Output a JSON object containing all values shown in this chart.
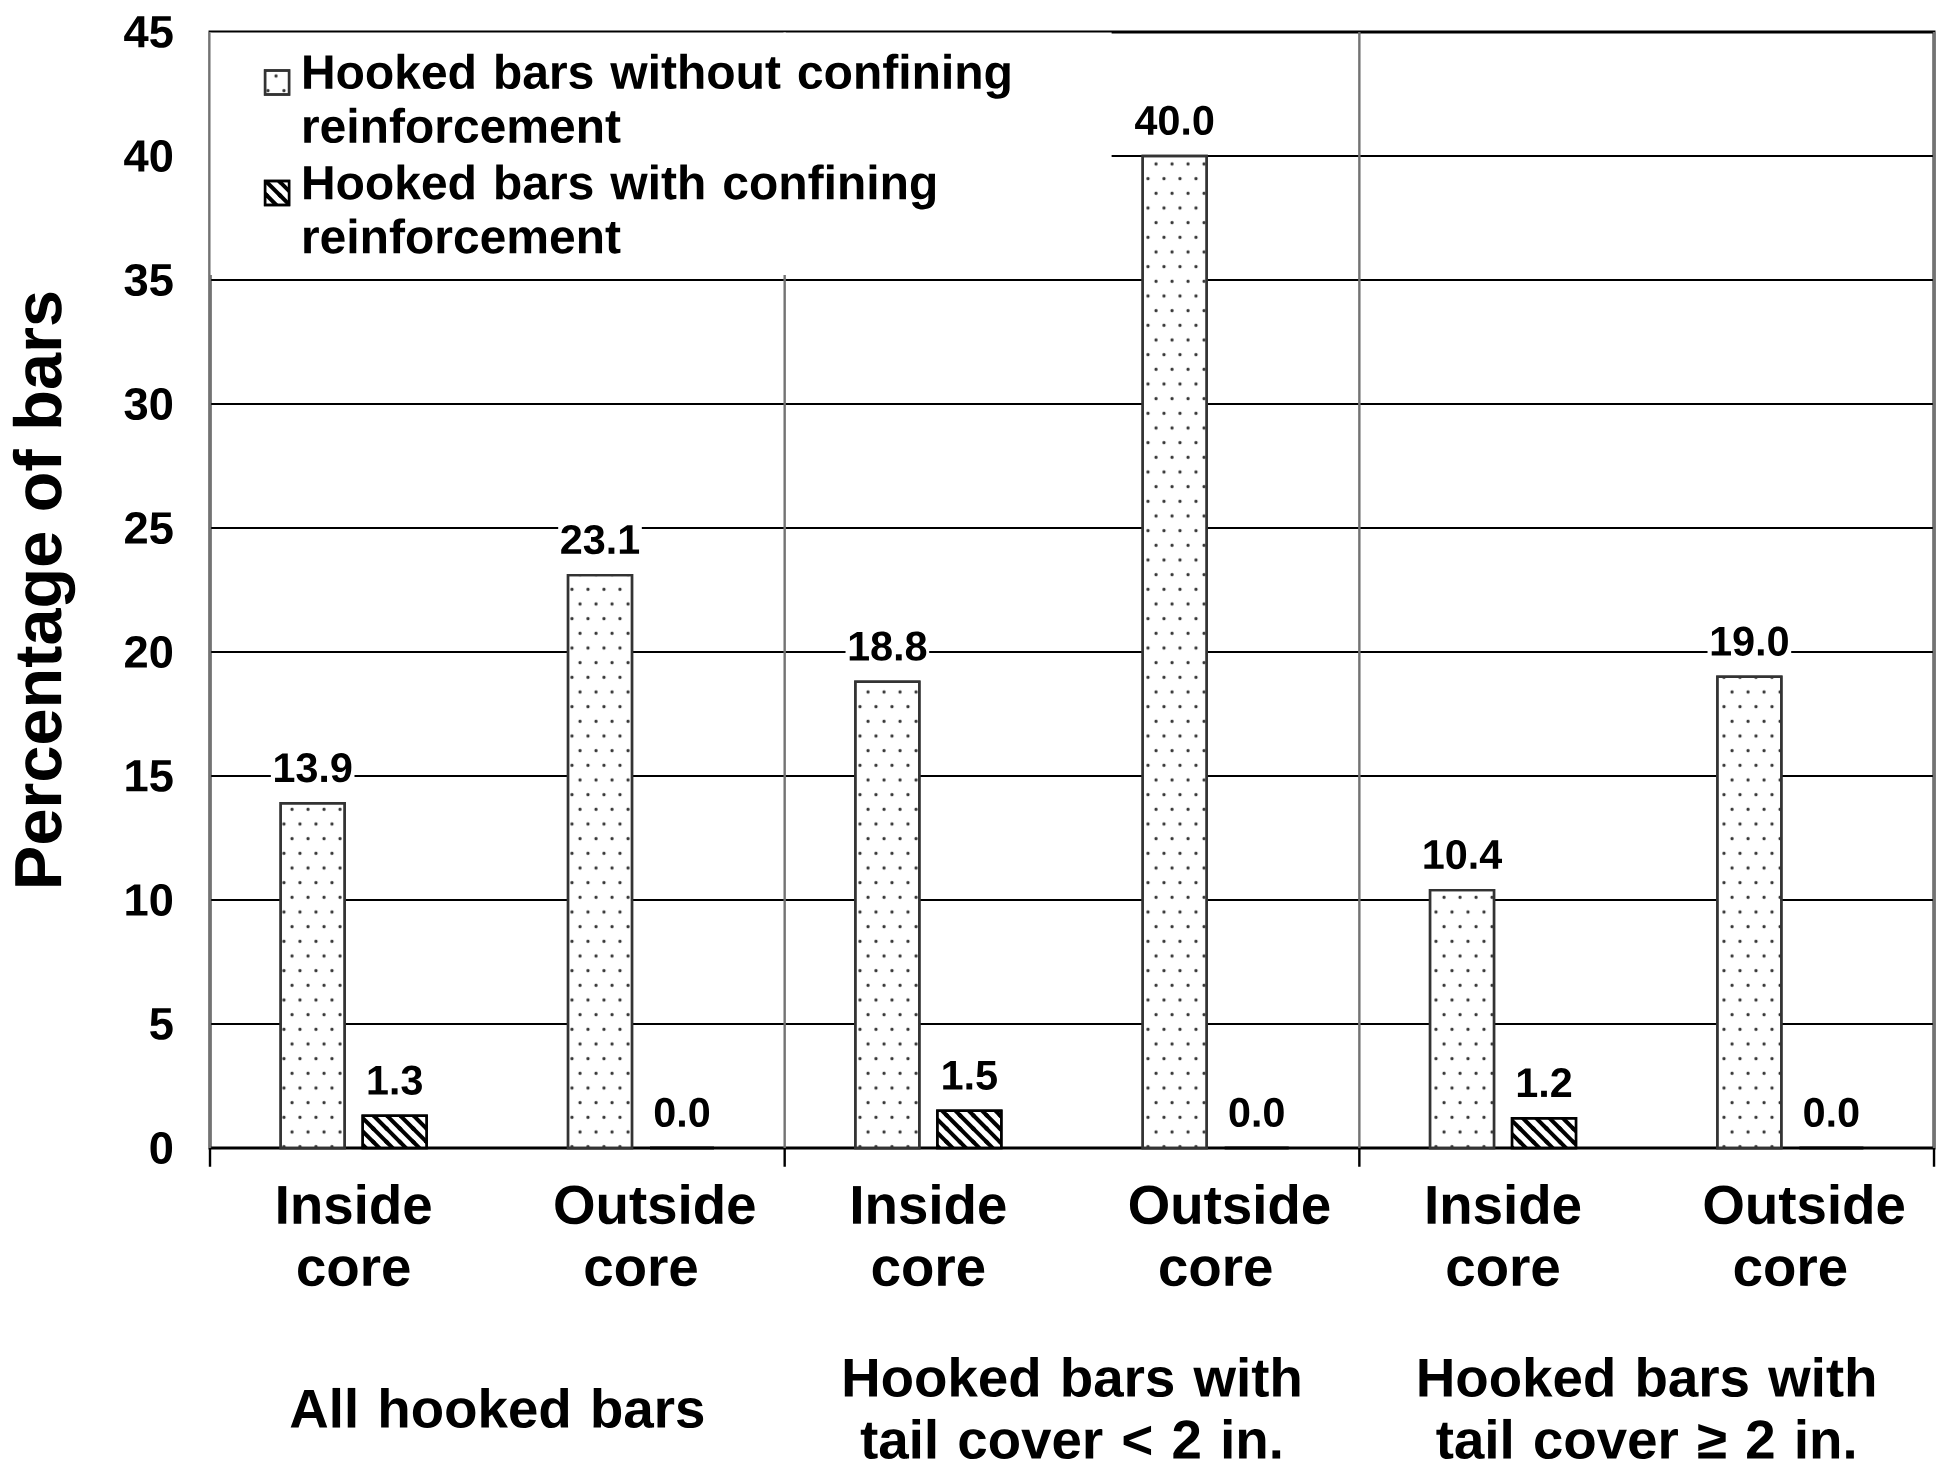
{
  "chart_data": {
    "type": "bar",
    "ylabel": "Percentage of bars",
    "categories": [
      "Inside core",
      "Outside core",
      "Inside core",
      "Outside core",
      "Inside core",
      "Outside core"
    ],
    "series": [
      {
        "name": "Hooked bars without confining reinforcement",
        "color": "#333333",
        "values": [
          13.9,
          23.1,
          18.8,
          40.0,
          10.4,
          19.0
        ],
        "value_labels": [
          "13.9",
          "23.1",
          "18.8",
          "40.0",
          "10.4",
          "19.0"
        ]
      },
      {
        "name": "Hooked bars with confining reinforcement",
        "color": "#000000",
        "values": [
          1.3,
          0.0,
          1.5,
          0.0,
          1.2,
          0.0
        ],
        "value_labels": [
          "1.3",
          "0.0",
          "1.5",
          "0.0",
          "1.2",
          "0.0"
        ]
      }
    ],
    "ylim": [
      0,
      45
    ],
    "yticks": [
      0,
      5,
      10,
      15,
      20,
      25,
      30,
      35,
      40,
      45
    ],
    "grid": "y",
    "legend": "top left",
    "annotations": [
      "All hooked bars",
      "Hooked bars with tail cover < 2 in.",
      "Hooked bars with tail cover ≥ 2 in."
    ]
  }
}
